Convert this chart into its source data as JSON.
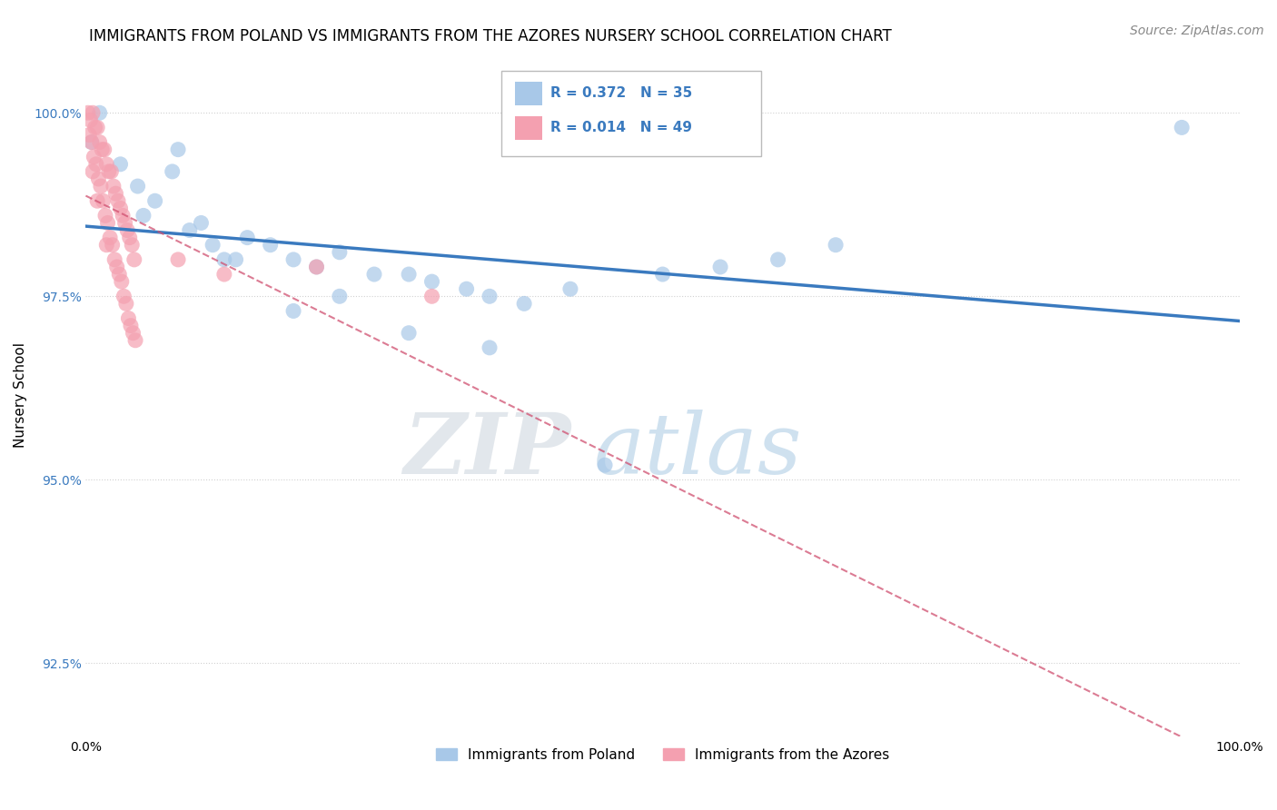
{
  "title": "IMMIGRANTS FROM POLAND VS IMMIGRANTS FROM THE AZORES NURSERY SCHOOL CORRELATION CHART",
  "source": "Source: ZipAtlas.com",
  "ylabel": "Nursery School",
  "xlabel": "",
  "xlim": [
    0,
    100
  ],
  "ylim": [
    91.5,
    100.8
  ],
  "yticks": [
    92.5,
    95.0,
    97.5,
    100.0
  ],
  "ytick_labels": [
    "92.5%",
    "95.0%",
    "97.5%",
    "100.0%"
  ],
  "xticks": [
    0,
    100
  ],
  "xtick_labels": [
    "0.0%",
    "100.0%"
  ],
  "legend_R1": "R = 0.372",
  "legend_N1": "N = 35",
  "legend_R2": "R = 0.014",
  "legend_N2": "N = 49",
  "legend_label1": "Immigrants from Poland",
  "legend_label2": "Immigrants from the Azores",
  "blue_color": "#a8c8e8",
  "blue_line_color": "#3a7abf",
  "pink_color": "#f4a0b0",
  "pink_line_color": "#d05070",
  "watermark_zip": "ZIP",
  "watermark_atlas": "atlas",
  "title_fontsize": 12,
  "source_fontsize": 10,
  "axis_label_fontsize": 11,
  "tick_fontsize": 10,
  "poland_x": [
    1.2,
    0.5,
    3.0,
    4.5,
    6.0,
    7.5,
    8.0,
    10.0,
    12.0,
    14.0,
    16.0,
    18.0,
    5.0,
    9.0,
    11.0,
    13.0,
    20.0,
    22.0,
    25.0,
    28.0,
    30.0,
    33.0,
    35.0,
    38.0,
    42.0,
    50.0,
    55.0,
    60.0,
    65.0,
    18.0,
    22.0,
    28.0,
    35.0,
    45.0,
    95.0
  ],
  "poland_y": [
    100.0,
    99.6,
    99.3,
    99.0,
    98.8,
    99.2,
    99.5,
    98.5,
    98.0,
    98.3,
    98.2,
    98.0,
    98.6,
    98.4,
    98.2,
    98.0,
    97.9,
    98.1,
    97.8,
    97.8,
    97.7,
    97.6,
    97.5,
    97.4,
    97.6,
    97.8,
    97.9,
    98.0,
    98.2,
    97.3,
    97.5,
    97.0,
    96.8,
    95.2,
    99.8
  ],
  "azores_x": [
    0.2,
    0.4,
    0.6,
    0.8,
    1.0,
    1.2,
    1.4,
    1.6,
    1.8,
    2.0,
    2.2,
    2.4,
    2.6,
    2.8,
    3.0,
    3.2,
    3.4,
    3.6,
    3.8,
    4.0,
    4.2,
    0.3,
    0.5,
    0.7,
    0.9,
    1.1,
    1.3,
    1.5,
    1.7,
    1.9,
    2.1,
    2.3,
    2.5,
    2.7,
    2.9,
    3.1,
    3.3,
    3.5,
    3.7,
    3.9,
    4.1,
    4.3,
    0.6,
    1.0,
    1.8,
    8.0,
    12.0,
    20.0,
    30.0
  ],
  "azores_y": [
    100.0,
    99.9,
    100.0,
    99.8,
    99.8,
    99.6,
    99.5,
    99.5,
    99.3,
    99.2,
    99.2,
    99.0,
    98.9,
    98.8,
    98.7,
    98.6,
    98.5,
    98.4,
    98.3,
    98.2,
    98.0,
    99.7,
    99.6,
    99.4,
    99.3,
    99.1,
    99.0,
    98.8,
    98.6,
    98.5,
    98.3,
    98.2,
    98.0,
    97.9,
    97.8,
    97.7,
    97.5,
    97.4,
    97.2,
    97.1,
    97.0,
    96.9,
    99.2,
    98.8,
    98.2,
    98.0,
    97.8,
    97.9,
    97.5
  ]
}
